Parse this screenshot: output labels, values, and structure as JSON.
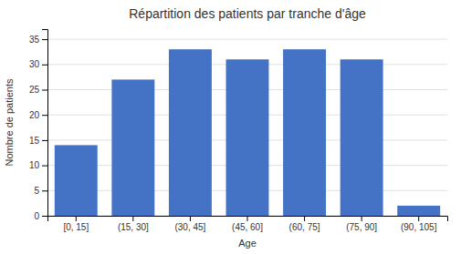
{
  "chart_data": {
    "type": "bar",
    "title": "Répartition des patients par tranche d'âge",
    "xlabel": "Age",
    "ylabel": "Nombre de patients",
    "categories": [
      "[0, 15]",
      "(15, 30]",
      "(30, 45]",
      "(45, 60]",
      "(60, 75]",
      "(75, 90]",
      "(90, 105]"
    ],
    "values": [
      14,
      27,
      33,
      31,
      33,
      31,
      2
    ],
    "color": "#4472C4",
    "ylim": [
      0,
      37
    ],
    "yticks": [
      0,
      5,
      10,
      15,
      20,
      25,
      30,
      35
    ],
    "grid": true
  }
}
